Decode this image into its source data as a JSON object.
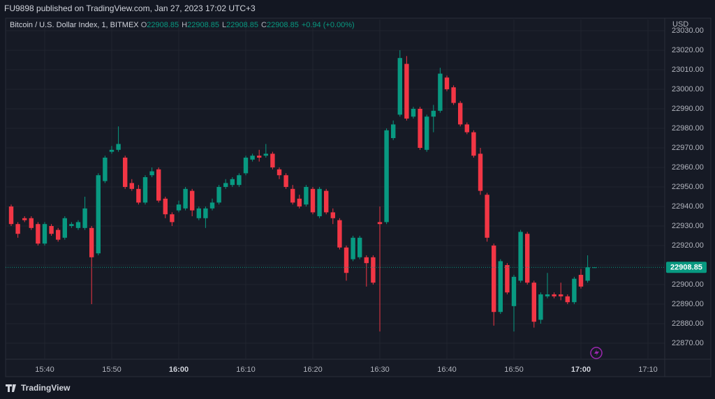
{
  "header": {
    "text": "FU9898 published on TradingView.com, Jan 27, 2023 17:02 UTC+3"
  },
  "footer": {
    "brand": "TradingView"
  },
  "chart_data": {
    "type": "candlestick",
    "title": "Bitcoin / U.S. Dollar Index, 1, BITMEX",
    "legend_labels": [
      "O",
      "H",
      "L",
      "C"
    ],
    "change": "+0.94 (+0.00%)",
    "currency": "USD",
    "up_color": "#089981",
    "down_color": "#f23645",
    "categories": [
      null,
      null,
      null,
      null,
      null,
      "15:40",
      null,
      null,
      null,
      null,
      null,
      null,
      null,
      null,
      null,
      "15:50",
      null,
      null,
      null,
      null,
      null,
      null,
      null,
      null,
      null,
      "16:00",
      null,
      null,
      null,
      null,
      null,
      null,
      null,
      null,
      null,
      "16:10",
      null,
      null,
      null,
      null,
      null,
      null,
      null,
      null,
      null,
      "16:20",
      null,
      null,
      null,
      null,
      null,
      null,
      null,
      null,
      null,
      "16:30",
      null,
      null,
      null,
      null,
      null,
      null,
      null,
      null,
      null,
      "16:40",
      null,
      null,
      null,
      null,
      null,
      null,
      null,
      null,
      null,
      "16:50",
      null,
      null,
      null,
      null,
      null,
      null,
      null,
      null,
      null,
      "17:00",
      null,
      null,
      null,
      null,
      null,
      null,
      null,
      null,
      null,
      "17:10"
    ],
    "open": [
      22940,
      22931,
      22934,
      22934,
      22931,
      22921,
      22930,
      22928,
      22924,
      22930,
      22929,
      22929,
      22929,
      22916,
      22953,
      22968,
      22969,
      22965,
      22952,
      22949,
      22942,
      22956,
      22959,
      22944,
      22936,
      22938,
      22939,
      22948,
      22934,
      22934,
      22939,
      22942,
      22950,
      22951,
      22951,
      22957,
      22964,
      22966,
      22966,
      22967,
      22959,
      22956,
      22949,
      22944,
      22941,
      22949,
      22935,
      22948,
      22937,
      22933,
      22919,
      22913,
      22914,
      22914,
      22914,
      22932,
      22932,
      22975,
      22987,
      23013,
      22986,
      22990,
      22969,
      22986,
      22989,
      23006,
      23001,
      22993,
      22982,
      22978,
      22967,
      22946,
      22920,
      22886,
      22910,
      22889,
      22902,
      22926,
      22901,
      22882,
      22894,
      22895,
      22895,
      22894,
      22891,
      22905,
      22902,
      22908.85,
      null,
      null,
      null,
      null,
      null,
      null,
      null,
      null
    ],
    "high": [
      22941,
      22932,
      22935,
      22935,
      22932,
      22932,
      22931,
      22929,
      22935,
      22932,
      22933,
      22945,
      22930,
      22957,
      22966,
      22971,
      22981,
      22966,
      22954,
      22951,
      22956,
      22960,
      22960,
      22945,
      22937,
      22943,
      22950,
      22949,
      22940,
      22940,
      22944,
      22951,
      22954,
      22955,
      22957,
      22966,
      22967,
      22969,
      22972,
      22968,
      22960,
      22957,
      22951,
      22946,
      22951,
      22950,
      22950,
      22949,
      22939,
      22934,
      22920,
      22925,
      22925,
      22915,
      22915,
      22940,
      22980,
      22984,
      23020,
      23017,
      22991,
      22991,
      22987,
      22992,
      23011,
      23007,
      23002,
      22994,
      22983,
      22979,
      22970,
      22947,
      22921,
      22913,
      22911,
      22905,
      22928,
      22927,
      22902,
      22896,
      22906,
      22896,
      22901,
      22895,
      22904,
      22908,
      22915,
      22908.85,
      null,
      null,
      null,
      null,
      null,
      null,
      null,
      null
    ],
    "low": [
      22930,
      22924,
      22932,
      22928,
      22920,
      22920,
      22925,
      22922,
      22923,
      22929,
      22928,
      22928,
      22890,
      22915,
      22952,
      22967,
      22968,
      22949,
      22948,
      22941,
      22941,
      22955,
      22942,
      22934,
      22930,
      22937,
      22938,
      22935,
      22933,
      22929,
      22938,
      22941,
      22949,
      22950,
      22950,
      22956,
      22963,
      22963,
      22965,
      22959,
      22954,
      22949,
      22941,
      22939,
      22940,
      22936,
      22934,
      22936,
      22931,
      22918,
      22902,
      22912,
      22913,
      22899,
      22900,
      22876,
      22931,
      22974,
      22986,
      22984,
      22985,
      22969,
      22968,
      22978,
      22988,
      22999,
      22992,
      22981,
      22977,
      22965,
      22946,
      22922,
      22879,
      22885,
      22895,
      22876,
      22901,
      22900,
      22878,
      22880,
      22893,
      22893,
      22892,
      22890,
      22890,
      22898,
      22901,
      22908.85,
      null,
      null,
      null,
      null,
      null,
      null,
      null,
      null
    ],
    "close": [
      22931,
      22926,
      22933,
      22929,
      22921,
      22931,
      22926,
      22923,
      22934,
      22931,
      22932,
      22939,
      22914,
      22956,
      22965,
      22969,
      22972,
      22950,
      22949,
      22942,
      22955,
      22958,
      22943,
      22936,
      22932,
      22941,
      22949,
      22938,
      22939,
      22939,
      22942,
      22950,
      22952,
      22954,
      22956,
      22965,
      22966,
      22965,
      22967,
      22960,
      22956,
      22950,
      22942,
      22940,
      22950,
      22937,
      22949,
      22937,
      22934,
      22919,
      22906,
      22924,
      22924,
      22911,
      22901,
      22931,
      22979,
      22982,
      23016,
      22985,
      22990,
      22970,
      22986,
      22989,
      23008,
      23000,
      22993,
      22982,
      22978,
      22966,
      22948,
      22924,
      22886,
      22912,
      22896,
      22904,
      22927,
      22901,
      22881,
      22895,
      22895,
      22894,
      22894,
      22891,
      22903,
      22899,
      22908.85,
      22908.85,
      null,
      null,
      null,
      null,
      null,
      null,
      null,
      null
    ],
    "ylim": [
      22861.8,
      23035.7
    ],
    "yticks": [
      {
        "value": 22870,
        "label": "22870.00"
      },
      {
        "value": 22880,
        "label": "22880.00"
      },
      {
        "value": 22890,
        "label": "22890.00"
      },
      {
        "value": 22900,
        "label": "22900.00"
      },
      {
        "value": 22910,
        "label": "22910.00"
      },
      {
        "value": 22920,
        "label": "22920.00"
      },
      {
        "value": 22930,
        "label": "22930.00"
      },
      {
        "value": 22940,
        "label": "22940.00"
      },
      {
        "value": 22950,
        "label": "22950.00"
      },
      {
        "value": 22960,
        "label": "22960.00"
      },
      {
        "value": 22970,
        "label": "22970.00"
      },
      {
        "value": 22980,
        "label": "22980.00"
      },
      {
        "value": 22990,
        "label": "22990.00"
      },
      {
        "value": 23000,
        "label": "23000.00"
      },
      {
        "value": 23010,
        "label": "23010.00"
      },
      {
        "value": 23020,
        "label": "23020.00"
      },
      {
        "value": 23030,
        "label": "23030.00"
      }
    ],
    "grid": true
  }
}
